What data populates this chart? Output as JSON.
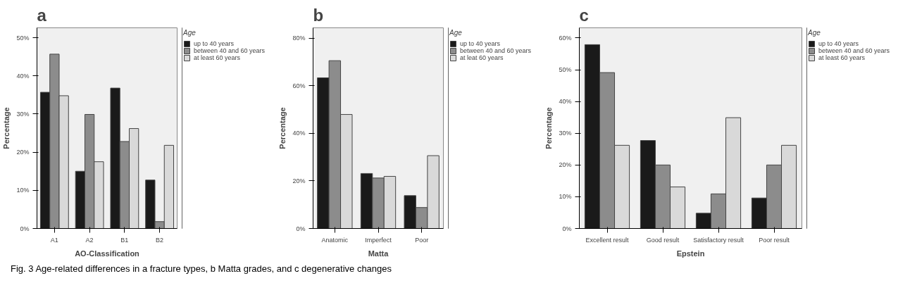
{
  "chart_data": [
    {
      "type": "bar",
      "title": "a",
      "xlabel": "AO-Classification",
      "ylabel": "Percentage",
      "legend_title": "Age",
      "legend": "top right",
      "grid": false,
      "categories": [
        "A1",
        "A2",
        "B1",
        "B2"
      ],
      "ylim": [
        0,
        52.6
      ],
      "yticks": [
        {
          "value": 0,
          "label": "0%"
        },
        {
          "value": 10,
          "label": "10%"
        },
        {
          "value": 20,
          "label": "20%"
        },
        {
          "value": 30,
          "label": "30%"
        },
        {
          "value": 40,
          "label": "40%"
        },
        {
          "value": 50,
          "label": "50%"
        }
      ],
      "series": [
        {
          "name": "up to 40 years",
          "color": "#1a1a1a",
          "values": [
            35.7,
            15.0,
            36.8,
            12.7
          ]
        },
        {
          "name": "between 40 and 60 years",
          "color": "#8c8c8c",
          "values": [
            45.7,
            29.9,
            22.8,
            1.8
          ]
        },
        {
          "name": "at least 60 years",
          "color": "#d9d9d9",
          "values": [
            34.8,
            17.5,
            26.2,
            21.8
          ]
        }
      ],
      "annotations": [
        "Fig. 3 Age-related differences in a fracture types, b Matta grades, and c degenerative changes"
      ]
    },
    {
      "type": "bar",
      "title": "b",
      "xlabel": "Matta",
      "ylabel": "Percentage",
      "legend_title": "Age",
      "legend": "top right",
      "grid": false,
      "categories": [
        "Anatomic",
        "Imperfect",
        "Poor"
      ],
      "ylim": [
        0,
        84.3
      ],
      "yticks": [
        {
          "value": 0,
          "label": "0%"
        },
        {
          "value": 20,
          "label": "20%"
        },
        {
          "value": 40,
          "label": "40%"
        },
        {
          "value": 60,
          "label": "60%"
        },
        {
          "value": 80,
          "label": "80%"
        }
      ],
      "series": [
        {
          "name": "up to 40 years",
          "color": "#1a1a1a",
          "values": [
            63.3,
            23.1,
            13.8
          ]
        },
        {
          "name": "between 40 and 60 years",
          "color": "#8c8c8c",
          "values": [
            70.5,
            21.2,
            8.8
          ]
        },
        {
          "name": "at leat 60 years",
          "color": "#d9d9d9",
          "values": [
            47.9,
            21.9,
            30.6
          ]
        }
      ]
    },
    {
      "type": "bar",
      "title": "c",
      "xlabel": "Epstein",
      "ylabel": "Percentage",
      "legend_title": "Age",
      "legend": "top right",
      "grid": false,
      "categories": [
        "Excellent result",
        "Good result",
        "Satisfactory result",
        "Poor result"
      ],
      "ylim": [
        0,
        63.2
      ],
      "yticks": [
        {
          "value": 0,
          "label": "0%"
        },
        {
          "value": 10,
          "label": "10%"
        },
        {
          "value": 20,
          "label": "20%"
        },
        {
          "value": 30,
          "label": "30%"
        },
        {
          "value": 40,
          "label": "40%"
        },
        {
          "value": 50,
          "label": "50%"
        },
        {
          "value": 60,
          "label": "60%"
        }
      ],
      "series": [
        {
          "name": "up to 40 years",
          "color": "#1a1a1a",
          "values": [
            57.9,
            27.7,
            4.8,
            9.6
          ]
        },
        {
          "name": "between 40 and 60 years",
          "color": "#8c8c8c",
          "values": [
            49.1,
            20.0,
            10.9,
            20.0
          ]
        },
        {
          "name": "at least 60 years",
          "color": "#d9d9d9",
          "values": [
            26.2,
            13.1,
            34.9,
            26.2
          ]
        }
      ]
    }
  ]
}
